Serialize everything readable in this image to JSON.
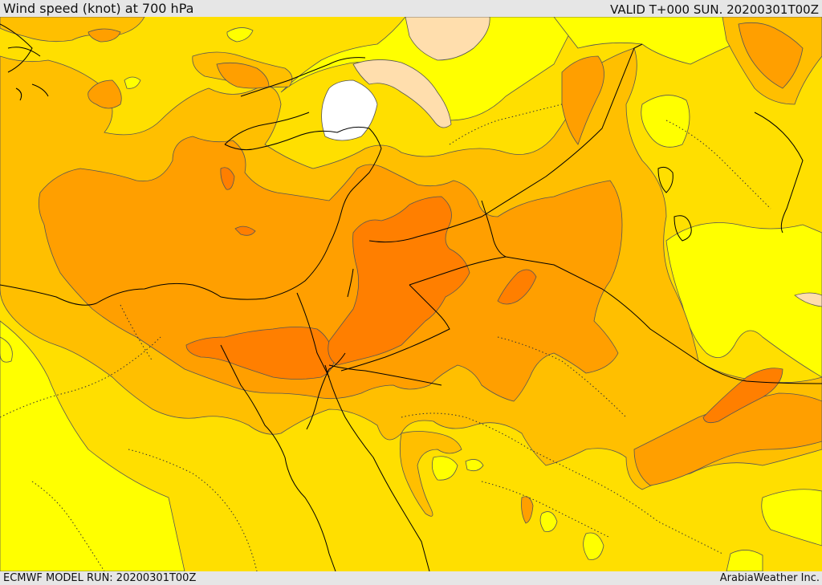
{
  "header": {
    "title": "Wind speed (knot) at 700 hPa",
    "valid": "VALID T+000 SUN. 20200301T00Z"
  },
  "footer": {
    "model_run": "ECMWF MODEL RUN: 20200301T00Z",
    "credit": "ArabiaWeather Inc."
  },
  "map": {
    "variable": "wind speed",
    "level": "700 hPa",
    "unit": "knot",
    "fill_colors": {
      "very_low": "#ffffff",
      "low": "#ffdead",
      "band_1": "#ffff00",
      "band_2": "#ffdf00",
      "band_3": "#ffbf00",
      "band_4": "#ff9f00",
      "band_5": "#ff7f00"
    },
    "line_colors": {
      "contour": "#555555",
      "borders": "#000000"
    }
  }
}
